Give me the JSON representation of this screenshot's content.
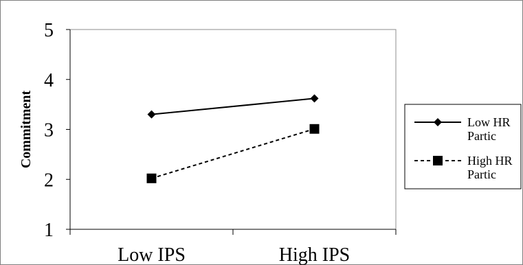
{
  "chart_data": {
    "type": "line",
    "categories": [
      "Low IPS",
      "High IPS"
    ],
    "ylabel": "Commitment",
    "xlabel": "",
    "title": "",
    "ylim": [
      1,
      5
    ],
    "yticks": [
      "1",
      "2",
      "3",
      "4",
      "5"
    ],
    "grid": false,
    "legend_position": "right",
    "series": [
      {
        "name_lines": [
          "Low HR",
          "Partic"
        ],
        "values": [
          3.3,
          3.62
        ],
        "marker": "diamond",
        "line_style": "solid",
        "color": "#000000"
      },
      {
        "name_lines": [
          "High HR",
          "Partic"
        ],
        "values": [
          2.02,
          3.01
        ],
        "marker": "square",
        "line_style": "dashed",
        "color": "#000000"
      }
    ]
  }
}
